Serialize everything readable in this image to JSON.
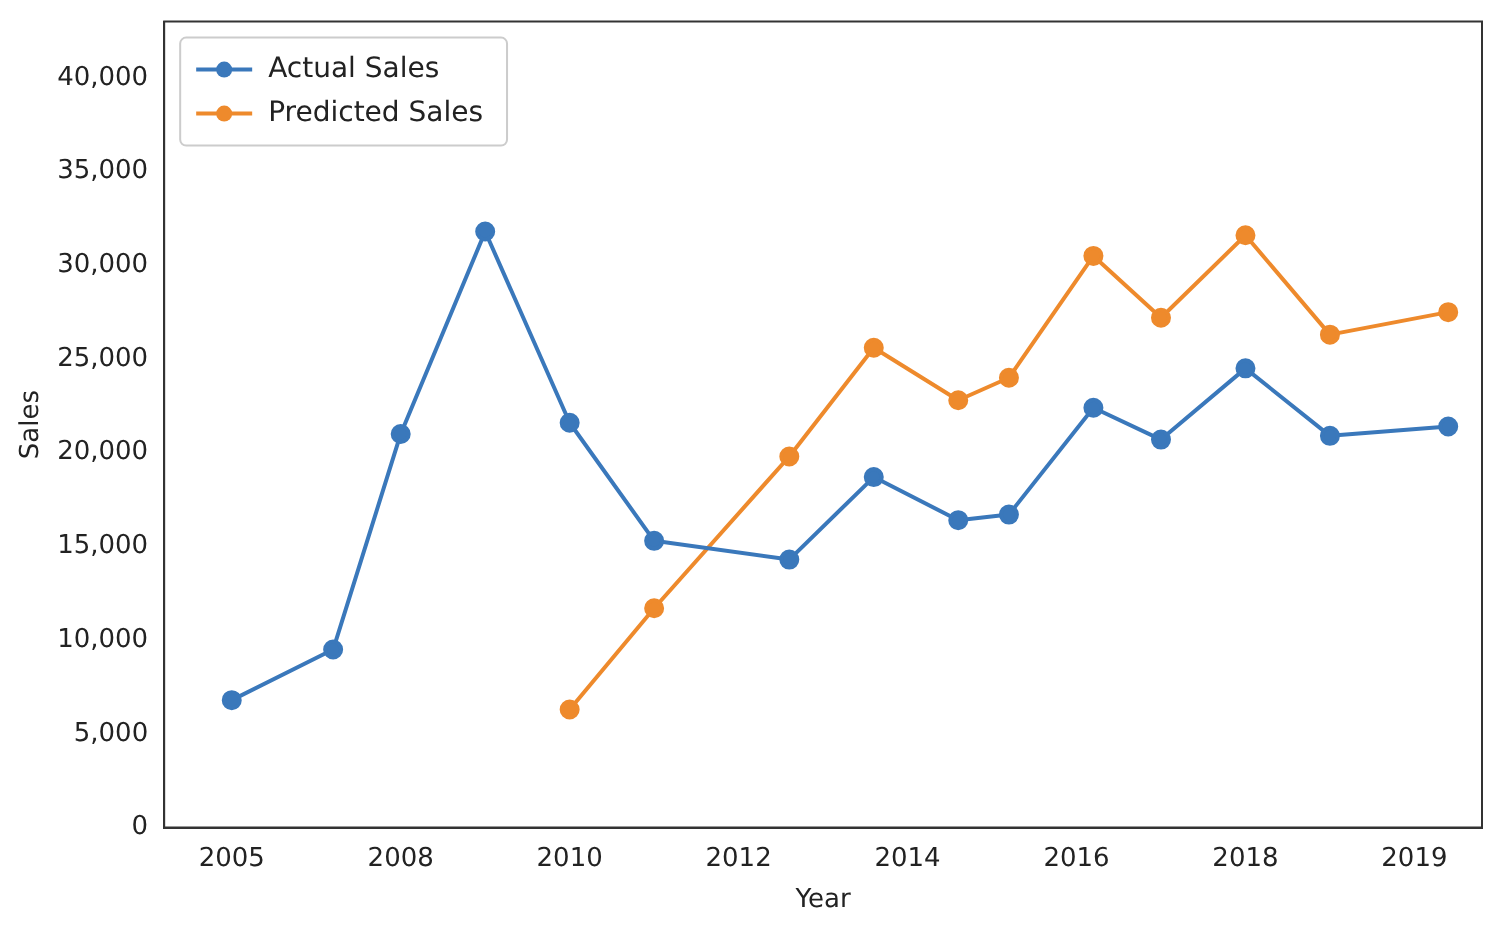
{
  "chart_data": {
    "type": "line",
    "xlabel": "Year",
    "ylabel": "Sales",
    "categories": [
      null,
      null,
      null,
      null,
      "2005",
      null,
      null,
      null,
      null,
      null,
      null,
      null,
      null,
      null,
      "2008",
      null,
      null,
      null,
      null,
      null,
      null,
      null,
      null,
      null,
      "2010",
      null,
      null,
      null,
      null,
      null,
      null,
      null,
      null,
      null,
      "2012",
      null,
      null,
      null,
      null,
      null,
      null,
      null,
      null,
      null,
      "2014",
      null,
      null,
      null,
      null,
      null,
      null,
      null,
      null,
      null,
      "2016",
      null,
      null,
      null,
      null,
      null,
      null,
      null,
      null,
      null,
      "2018",
      null,
      null,
      null,
      null,
      null,
      null,
      null,
      null,
      null,
      "2019",
      null,
      null,
      null,
      null
    ],
    "ylim": [
      0,
      43000
    ],
    "yticks": [
      {
        "value": 0,
        "label": "0"
      },
      {
        "value": 5000,
        "label": "5,000"
      },
      {
        "value": 10000,
        "label": "10,000"
      },
      {
        "value": 15000,
        "label": "15,000"
      },
      {
        "value": 20000,
        "label": "20,000"
      },
      {
        "value": 25000,
        "label": "25,000"
      },
      {
        "value": 30000,
        "label": "30,000"
      },
      {
        "value": 35000,
        "label": "35,000"
      },
      {
        "value": 40000,
        "label": "40,000"
      }
    ],
    "grid": false,
    "legend": "top left",
    "marker": "circle",
    "line_style": "solid",
    "series": [
      {
        "name": "Actual Sales",
        "color": "#3a78bb",
        "values": [
          null,
          null,
          null,
          null,
          6800,
          null,
          null,
          null,
          null,
          null,
          9500,
          null,
          null,
          null,
          21000,
          null,
          null,
          null,
          null,
          31800,
          null,
          null,
          null,
          null,
          21600,
          null,
          null,
          null,
          null,
          15300,
          null,
          null,
          null,
          null,
          null,
          null,
          null,
          14300,
          null,
          null,
          null,
          null,
          18700,
          null,
          null,
          null,
          null,
          16400,
          null,
          null,
          16700,
          null,
          null,
          null,
          null,
          22400,
          null,
          null,
          null,
          20700,
          null,
          null,
          null,
          null,
          24500,
          null,
          null,
          null,
          null,
          20900,
          null,
          null,
          null,
          null,
          null,
          null,
          21400,
          null,
          null
        ]
      },
      {
        "name": "Predicted Sales",
        "color": "#ee8a2c",
        "values": [
          null,
          null,
          null,
          null,
          null,
          null,
          null,
          null,
          null,
          null,
          null,
          null,
          null,
          null,
          null,
          null,
          null,
          null,
          null,
          null,
          null,
          null,
          null,
          null,
          6300,
          null,
          null,
          null,
          null,
          11700,
          null,
          null,
          null,
          null,
          null,
          null,
          null,
          19800,
          null,
          null,
          null,
          null,
          25600,
          null,
          null,
          null,
          null,
          22800,
          null,
          null,
          24000,
          null,
          null,
          null,
          null,
          30500,
          null,
          null,
          null,
          27200,
          null,
          null,
          null,
          null,
          31600,
          null,
          null,
          null,
          null,
          26300,
          null,
          null,
          null,
          null,
          null,
          null,
          27500,
          null,
          null
        ]
      }
    ]
  }
}
